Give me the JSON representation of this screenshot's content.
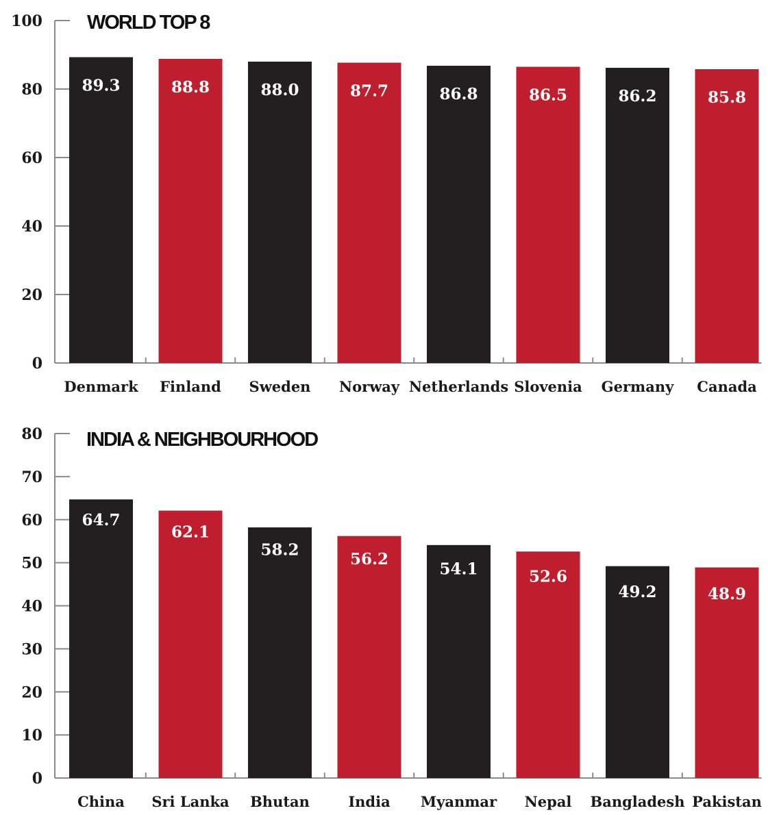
{
  "chart_data": [
    {
      "type": "bar",
      "title": "WORLD TOP 8",
      "categories": [
        "Denmark",
        "Finland",
        "Sweden",
        "Norway",
        "Netherlands",
        "Slovenia",
        "Germany",
        "Canada"
      ],
      "values": [
        89.3,
        88.8,
        88.0,
        87.7,
        86.8,
        86.5,
        86.2,
        85.8
      ],
      "value_labels": [
        "89.3",
        "88.8",
        "88.0",
        "87.7",
        "86.8",
        "86.5",
        "86.2",
        "85.8"
      ],
      "yticks": [
        "0",
        "20",
        "40",
        "60",
        "80",
        "100"
      ],
      "ylim": [
        0,
        100
      ],
      "xlabel": "",
      "ylabel": "",
      "grid": false,
      "colors": [
        "#231f20",
        "#be1e2d"
      ]
    },
    {
      "type": "bar",
      "title": "INDIA & NEIGHBOURHOOD",
      "categories": [
        "China",
        "Sri Lanka",
        "Bhutan",
        "India",
        "Myanmar",
        "Nepal",
        "Bangladesh",
        "Pakistan"
      ],
      "values": [
        64.7,
        62.1,
        58.2,
        56.2,
        54.1,
        52.6,
        49.2,
        48.9
      ],
      "value_labels": [
        "64.7",
        "62.1",
        "58.2",
        "56.2",
        "54.1",
        "52.6",
        "49.2",
        "48.9"
      ],
      "yticks": [
        "0",
        "10",
        "20",
        "30",
        "40",
        "50",
        "60",
        "70",
        "80"
      ],
      "ylim": [
        0,
        80
      ],
      "xlabel": "",
      "ylabel": "",
      "grid": false,
      "colors": [
        "#231f20",
        "#be1e2d"
      ]
    }
  ]
}
